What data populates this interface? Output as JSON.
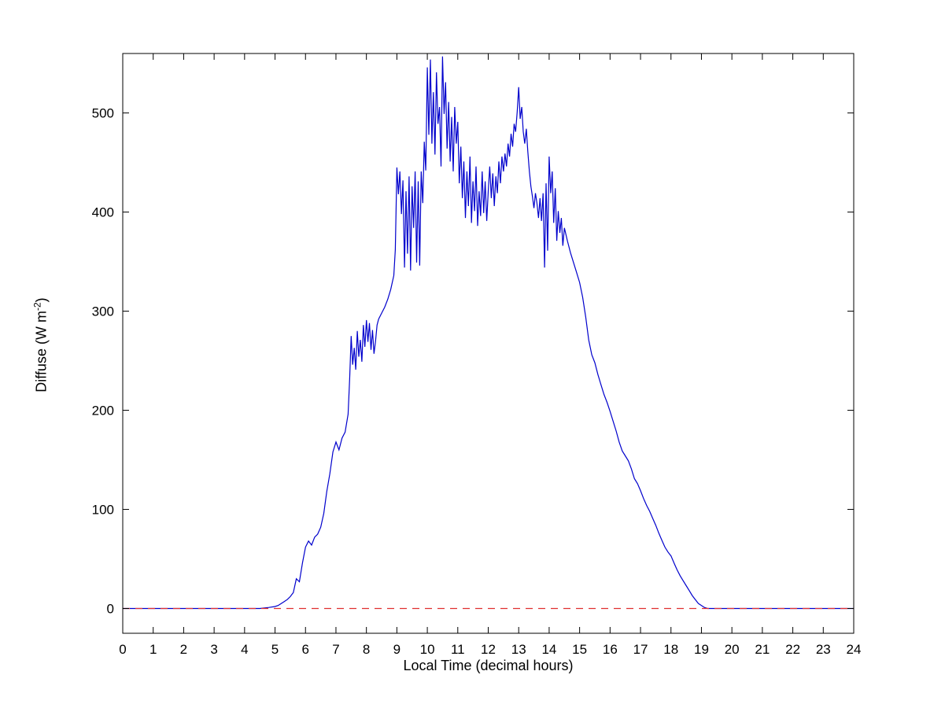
{
  "chart_data": {
    "type": "line",
    "title": "",
    "xlabel": "Local Time (decimal hours)",
    "ylabel": "Diffuse (W m^-2)",
    "ylabel_parts": {
      "main": "Diffuse (W m",
      "sup": "-2",
      "close": ")"
    },
    "xlim": [
      0,
      24
    ],
    "ylim": [
      -25,
      560
    ],
    "xticks": [
      0,
      1,
      2,
      3,
      4,
      5,
      6,
      7,
      8,
      9,
      10,
      11,
      12,
      13,
      14,
      15,
      16,
      17,
      18,
      19,
      20,
      21,
      22,
      23,
      24
    ],
    "yticks": [
      0,
      100,
      200,
      300,
      400,
      500
    ],
    "grid": false,
    "legend": "none",
    "series": [
      {
        "name": "diffuse-irradiance",
        "color": "#0000cc",
        "style": "solid",
        "points": [
          [
            0,
            0
          ],
          [
            0.5,
            0
          ],
          [
            1,
            0
          ],
          [
            1.5,
            0
          ],
          [
            2,
            0
          ],
          [
            2.5,
            0
          ],
          [
            3,
            0
          ],
          [
            3.5,
            0
          ],
          [
            4,
            0
          ],
          [
            4.5,
            0
          ],
          [
            4.8,
            1
          ],
          [
            5,
            2
          ],
          [
            5.1,
            3
          ],
          [
            5.2,
            5
          ],
          [
            5.3,
            7
          ],
          [
            5.4,
            9
          ],
          [
            5.5,
            12
          ],
          [
            5.6,
            16
          ],
          [
            5.7,
            30
          ],
          [
            5.8,
            27
          ],
          [
            5.9,
            46
          ],
          [
            6,
            62
          ],
          [
            6.1,
            68
          ],
          [
            6.2,
            64
          ],
          [
            6.3,
            72
          ],
          [
            6.4,
            75
          ],
          [
            6.5,
            82
          ],
          [
            6.6,
            96
          ],
          [
            6.7,
            118
          ],
          [
            6.8,
            136
          ],
          [
            6.9,
            158
          ],
          [
            7,
            168
          ],
          [
            7.1,
            160
          ],
          [
            7.2,
            172
          ],
          [
            7.3,
            178
          ],
          [
            7.4,
            196
          ],
          [
            7.45,
            232
          ],
          [
            7.5,
            275
          ],
          [
            7.55,
            246
          ],
          [
            7.6,
            263
          ],
          [
            7.65,
            241
          ],
          [
            7.7,
            280
          ],
          [
            7.75,
            254
          ],
          [
            7.8,
            271
          ],
          [
            7.85,
            249
          ],
          [
            7.9,
            286
          ],
          [
            7.95,
            264
          ],
          [
            8,
            291
          ],
          [
            8.05,
            269
          ],
          [
            8.1,
            288
          ],
          [
            8.15,
            261
          ],
          [
            8.2,
            281
          ],
          [
            8.25,
            257
          ],
          [
            8.3,
            270
          ],
          [
            8.35,
            286
          ],
          [
            8.4,
            292
          ],
          [
            8.5,
            298
          ],
          [
            8.6,
            304
          ],
          [
            8.7,
            312
          ],
          [
            8.8,
            322
          ],
          [
            8.9,
            336
          ],
          [
            8.95,
            362
          ],
          [
            9,
            445
          ],
          [
            9.05,
            418
          ],
          [
            9.1,
            441
          ],
          [
            9.15,
            398
          ],
          [
            9.2,
            432
          ],
          [
            9.25,
            344
          ],
          [
            9.3,
            421
          ],
          [
            9.35,
            358
          ],
          [
            9.4,
            436
          ],
          [
            9.45,
            341
          ],
          [
            9.5,
            426
          ],
          [
            9.55,
            384
          ],
          [
            9.6,
            441
          ],
          [
            9.65,
            349
          ],
          [
            9.7,
            431
          ],
          [
            9.75,
            346
          ],
          [
            9.8,
            441
          ],
          [
            9.85,
            409
          ],
          [
            9.9,
            471
          ],
          [
            9.95,
            442
          ],
          [
            10,
            546
          ],
          [
            10.05,
            478
          ],
          [
            10.1,
            554
          ],
          [
            10.15,
            469
          ],
          [
            10.2,
            521
          ],
          [
            10.25,
            458
          ],
          [
            10.3,
            541
          ],
          [
            10.35,
            489
          ],
          [
            10.4,
            506
          ],
          [
            10.45,
            446
          ],
          [
            10.5,
            557
          ],
          [
            10.55,
            499
          ],
          [
            10.6,
            531
          ],
          [
            10.65,
            464
          ],
          [
            10.7,
            511
          ],
          [
            10.75,
            451
          ],
          [
            10.8,
            496
          ],
          [
            10.85,
            441
          ],
          [
            10.9,
            506
          ],
          [
            10.95,
            469
          ],
          [
            11,
            491
          ],
          [
            11.05,
            429
          ],
          [
            11.1,
            466
          ],
          [
            11.15,
            414
          ],
          [
            11.2,
            451
          ],
          [
            11.25,
            394
          ],
          [
            11.3,
            441
          ],
          [
            11.35,
            406
          ],
          [
            11.4,
            456
          ],
          [
            11.45,
            389
          ],
          [
            11.5,
            431
          ],
          [
            11.55,
            401
          ],
          [
            11.6,
            446
          ],
          [
            11.65,
            386
          ],
          [
            11.7,
            421
          ],
          [
            11.75,
            396
          ],
          [
            11.8,
            441
          ],
          [
            11.85,
            399
          ],
          [
            11.9,
            431
          ],
          [
            11.95,
            391
          ],
          [
            12,
            421
          ],
          [
            12.05,
            446
          ],
          [
            12.1,
            414
          ],
          [
            12.15,
            439
          ],
          [
            12.2,
            406
          ],
          [
            12.25,
            436
          ],
          [
            12.3,
            419
          ],
          [
            12.35,
            451
          ],
          [
            12.4,
            429
          ],
          [
            12.45,
            456
          ],
          [
            12.5,
            441
          ],
          [
            12.55,
            459
          ],
          [
            12.6,
            446
          ],
          [
            12.65,
            469
          ],
          [
            12.7,
            456
          ],
          [
            12.75,
            479
          ],
          [
            12.8,
            466
          ],
          [
            12.85,
            489
          ],
          [
            12.9,
            481
          ],
          [
            12.95,
            501
          ],
          [
            13,
            526
          ],
          [
            13.05,
            494
          ],
          [
            13.1,
            506
          ],
          [
            13.15,
            481
          ],
          [
            13.2,
            469
          ],
          [
            13.25,
            484
          ],
          [
            13.3,
            461
          ],
          [
            13.35,
            441
          ],
          [
            13.4,
            426
          ],
          [
            13.45,
            416
          ],
          [
            13.5,
            404
          ],
          [
            13.55,
            419
          ],
          [
            13.6,
            409
          ],
          [
            13.65,
            394
          ],
          [
            13.7,
            414
          ],
          [
            13.75,
            391
          ],
          [
            13.8,
            419
          ],
          [
            13.85,
            344
          ],
          [
            13.9,
            429
          ],
          [
            13.95,
            361
          ],
          [
            14,
            456
          ],
          [
            14.05,
            419
          ],
          [
            14.1,
            441
          ],
          [
            14.15,
            389
          ],
          [
            14.2,
            424
          ],
          [
            14.25,
            371
          ],
          [
            14.3,
            401
          ],
          [
            14.35,
            379
          ],
          [
            14.4,
            394
          ],
          [
            14.45,
            366
          ],
          [
            14.5,
            384
          ],
          [
            14.6,
            371
          ],
          [
            14.7,
            359
          ],
          [
            14.8,
            349
          ],
          [
            14.9,
            339
          ],
          [
            15,
            329
          ],
          [
            15.1,
            314
          ],
          [
            15.2,
            294
          ],
          [
            15.3,
            271
          ],
          [
            15.4,
            256
          ],
          [
            15.5,
            248
          ],
          [
            15.6,
            236
          ],
          [
            15.7,
            226
          ],
          [
            15.8,
            216
          ],
          [
            15.9,
            208
          ],
          [
            16,
            199
          ],
          [
            16.1,
            189
          ],
          [
            16.2,
            179
          ],
          [
            16.3,
            168
          ],
          [
            16.4,
            159
          ],
          [
            16.5,
            154
          ],
          [
            16.6,
            149
          ],
          [
            16.7,
            141
          ],
          [
            16.8,
            131
          ],
          [
            16.9,
            126
          ],
          [
            17,
            119
          ],
          [
            17.1,
            111
          ],
          [
            17.2,
            104
          ],
          [
            17.3,
            98
          ],
          [
            17.4,
            91
          ],
          [
            17.5,
            84
          ],
          [
            17.6,
            76
          ],
          [
            17.7,
            69
          ],
          [
            17.8,
            62
          ],
          [
            17.9,
            57
          ],
          [
            18,
            53
          ],
          [
            18.1,
            46
          ],
          [
            18.2,
            39
          ],
          [
            18.3,
            33
          ],
          [
            18.4,
            28
          ],
          [
            18.5,
            23
          ],
          [
            18.6,
            18
          ],
          [
            18.7,
            13
          ],
          [
            18.8,
            9
          ],
          [
            18.9,
            5
          ],
          [
            19,
            3
          ],
          [
            19.1,
            1
          ],
          [
            19.2,
            0
          ],
          [
            19.5,
            0
          ],
          [
            20,
            0
          ],
          [
            20.5,
            0
          ],
          [
            21,
            0
          ],
          [
            21.5,
            0
          ],
          [
            22,
            0
          ],
          [
            22.5,
            0
          ],
          [
            23,
            0
          ],
          [
            23.5,
            0
          ],
          [
            24,
            0
          ]
        ]
      },
      {
        "name": "zero-reference-line",
        "color": "#e03030",
        "style": "dashed",
        "points": [
          [
            0,
            0
          ],
          [
            24,
            0
          ]
        ]
      }
    ]
  }
}
